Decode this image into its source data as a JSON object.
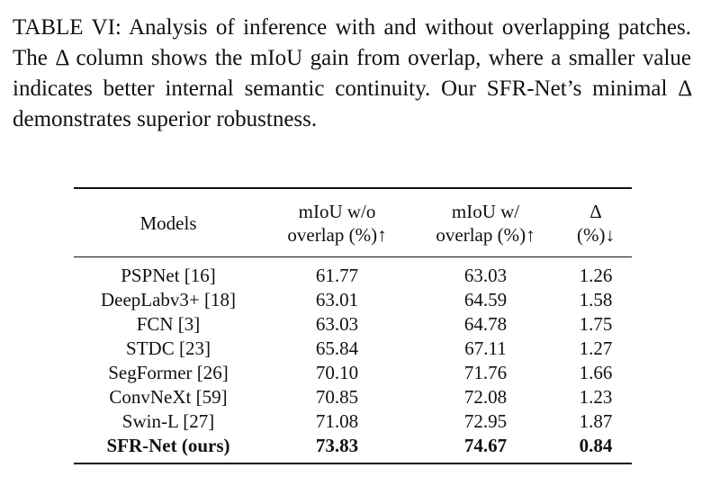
{
  "caption": {
    "label": "TABLE VI:",
    "text_before_delta": " Analysis of inference with and without overlap­ping patches. The ",
    "delta_symbol": "Δ",
    "text_after_delta": " column shows the mIoU gain from over­lap, where a smaller value indicates better internal semantic continuity. Our SFR-Net’s minimal ",
    "delta_symbol_2": "Δ",
    "text_end": " demonstrates superior robustness."
  },
  "table": {
    "headers": {
      "models": "Models",
      "without_overlap_line1": "mIoU w/o",
      "without_overlap_line2": "overlap (%)↑",
      "with_overlap_line1": "mIoU w/",
      "with_overlap_line2": "overlap (%)↑",
      "delta_line1": "Δ",
      "delta_line2": "(%)↓"
    },
    "rows": [
      {
        "model": "PSPNet [16]",
        "wo": "61.77",
        "w": "63.03",
        "delta": "1.26"
      },
      {
        "model": "DeepLabv3+ [18]",
        "wo": "63.01",
        "w": "64.59",
        "delta": "1.58"
      },
      {
        "model": "FCN [3]",
        "wo": "63.03",
        "w": "64.78",
        "delta": "1.75"
      },
      {
        "model": "STDC [23]",
        "wo": "65.84",
        "w": "67.11",
        "delta": "1.27"
      },
      {
        "model": "SegFormer [26]",
        "wo": "70.10",
        "w": "71.76",
        "delta": "1.66"
      },
      {
        "model": "ConvNeXt [59]",
        "wo": "70.85",
        "w": "72.08",
        "delta": "1.23"
      },
      {
        "model": "Swin-L [27]",
        "wo": "71.08",
        "w": "72.95",
        "delta": "1.87"
      },
      {
        "model": "SFR-Net (ours)",
        "wo": "73.83",
        "w": "74.67",
        "delta": "0.84"
      }
    ]
  }
}
